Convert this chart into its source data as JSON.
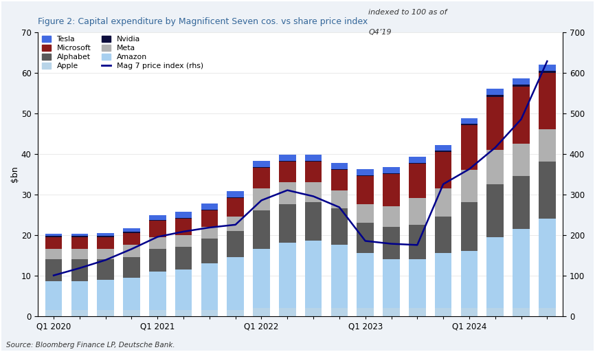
{
  "title": "Figure 2: Capital expenditure by Magnificent Seven cos. vs share price index",
  "ylabel_left": "$bn",
  "ylabel_right_line1": "indexed to 100 as of",
  "ylabel_right_line2": "Q4’19",
  "source": "Source: Bloomberg Finance LP, Deutsche Bank.",
  "ylim_left": [
    0,
    70
  ],
  "ylim_right": [
    0,
    700
  ],
  "yticks_left": [
    0,
    10,
    20,
    30,
    40,
    50,
    60,
    70
  ],
  "yticks_right": [
    0,
    100,
    200,
    300,
    400,
    500,
    600,
    700
  ],
  "xtick_labels": [
    "Q1 2020",
    "",
    "",
    "",
    "Q1 2021",
    "",
    "",
    "",
    "Q1 2022",
    "",
    "",
    "",
    "Q1 2023",
    "",
    "",
    "",
    "Q1 2024",
    "",
    "",
    ""
  ],
  "company_order": [
    "Apple",
    "Amazon",
    "Alphabet",
    "Meta",
    "Microsoft",
    "Nvidia",
    "Tesla"
  ],
  "colors": {
    "Apple": "#b8d4e8",
    "Amazon": "#a8d0f0",
    "Alphabet": "#5a5a5a",
    "Meta": "#b0b0b0",
    "Microsoft": "#8b1a1a",
    "Nvidia": "#0d0d3d",
    "Tesla": "#4169e1"
  },
  "bar_data": {
    "Apple": [
      1.5,
      1.5,
      1.5,
      1.5,
      1.5,
      1.5,
      1.5,
      1.5,
      2.0,
      2.0,
      2.0,
      2.0,
      2.0,
      2.0,
      2.0,
      2.0,
      2.0,
      2.0,
      2.0,
      2.0
    ],
    "Amazon": [
      7.0,
      7.0,
      7.5,
      8.0,
      9.5,
      10.0,
      11.5,
      13.0,
      14.5,
      16.0,
      16.5,
      15.5,
      13.5,
      12.0,
      12.0,
      13.5,
      14.0,
      17.5,
      19.5,
      22.0
    ],
    "Alphabet": [
      5.5,
      5.5,
      5.0,
      5.0,
      5.5,
      5.5,
      6.0,
      6.5,
      9.5,
      9.5,
      9.5,
      9.0,
      7.5,
      8.0,
      8.5,
      9.0,
      12.0,
      13.0,
      13.0,
      14.0
    ],
    "Meta": [
      2.5,
      2.5,
      2.5,
      3.0,
      3.0,
      3.0,
      3.0,
      3.5,
      5.5,
      5.5,
      5.0,
      4.5,
      4.5,
      5.0,
      6.5,
      7.0,
      8.0,
      8.5,
      8.0,
      8.0
    ],
    "Microsoft": [
      3.0,
      3.0,
      3.0,
      3.0,
      4.0,
      4.0,
      4.0,
      4.5,
      5.0,
      5.0,
      5.0,
      5.0,
      7.0,
      8.0,
      8.5,
      9.0,
      11.0,
      13.0,
      14.0,
      14.0
    ],
    "Nvidia": [
      0.2,
      0.2,
      0.2,
      0.2,
      0.2,
      0.2,
      0.2,
      0.2,
      0.2,
      0.2,
      0.2,
      0.2,
      0.2,
      0.2,
      0.2,
      0.2,
      0.3,
      0.5,
      0.5,
      0.5
    ],
    "Tesla": [
      0.5,
      0.5,
      0.7,
      1.0,
      1.2,
      1.5,
      1.5,
      1.5,
      1.5,
      1.5,
      1.5,
      1.5,
      1.5,
      1.5,
      1.5,
      1.5,
      1.5,
      1.5,
      1.5,
      1.5
    ]
  },
  "price_index": [
    100,
    118,
    138,
    165,
    195,
    208,
    218,
    225,
    285,
    310,
    295,
    268,
    185,
    178,
    175,
    325,
    362,
    415,
    485,
    628
  ],
  "line_color": "#00008b",
  "figure_bg": "#eef2f7",
  "plot_bg": "#ffffff",
  "border_color": "#b0c0d0"
}
